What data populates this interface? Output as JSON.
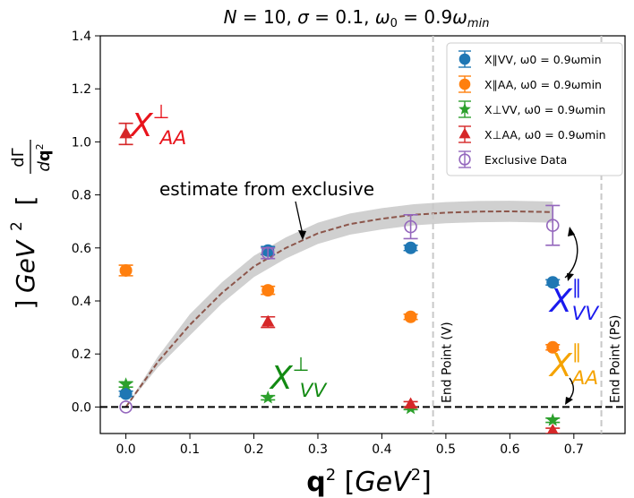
{
  "chart_data": {
    "type": "scatter",
    "title": "N = 10, σ = 0.1, ω₀ = 0.9ω_min",
    "xlabel": "q² [GeV²]",
    "ylabel": "dΓ/dq² [GeV²]",
    "xlim": [
      -0.04,
      0.78
    ],
    "ylim": [
      -0.1,
      1.4
    ],
    "xticks": [
      "0.0",
      "0.1",
      "0.2",
      "0.3",
      "0.4",
      "0.5",
      "0.6",
      "0.7"
    ],
    "yticks": [
      "0.0",
      "0.2",
      "0.4",
      "0.6",
      "0.8",
      "1.0",
      "1.2",
      "1.4"
    ],
    "grid": false,
    "legend_position": "top-right",
    "series": [
      {
        "key": "vv_par",
        "name": "X∥VV, ω0 = 0.9ωmin",
        "color": "#1f77b4",
        "marker": "circle",
        "x": [
          0.0,
          0.222,
          0.445,
          0.667
        ],
        "y": [
          0.05,
          0.59,
          0.6,
          0.47
        ],
        "err": [
          0.01,
          0.015,
          0.01,
          0.01
        ]
      },
      {
        "key": "aa_par",
        "name": "X∥AA, ω0 = 0.9ωmin",
        "color": "#ff7f0e",
        "marker": "circle",
        "x": [
          0.0,
          0.222,
          0.445,
          0.667
        ],
        "y": [
          0.515,
          0.44,
          0.34,
          0.225
        ],
        "err": [
          0.02,
          0.015,
          0.01,
          0.01
        ]
      },
      {
        "key": "vv_perp",
        "name": "X⊥VV, ω0 = 0.9ωmin",
        "color": "#2ca02c",
        "marker": "star",
        "x": [
          0.0,
          0.222,
          0.445,
          0.667
        ],
        "y": [
          0.085,
          0.035,
          -0.005,
          -0.05
        ],
        "err": [
          0.01,
          0.008,
          0.005,
          0.008
        ]
      },
      {
        "key": "aa_perp",
        "name": "X⊥AA, ω0 = 0.9ωmin",
        "color": "#d62728",
        "marker": "triangle",
        "x": [
          0.0,
          0.222,
          0.445,
          0.667
        ],
        "y": [
          1.03,
          0.32,
          0.01,
          -0.09
        ],
        "err": [
          0.04,
          0.02,
          0.01,
          0.01
        ]
      },
      {
        "key": "excl",
        "name": "Exclusive Data",
        "color": "#9467bd",
        "marker": "open-circle",
        "x": [
          0.0,
          0.222,
          0.445,
          0.667
        ],
        "y": [
          0.0,
          0.58,
          0.68,
          0.685
        ],
        "err": [
          0.0,
          0.02,
          0.045,
          0.075
        ]
      }
    ],
    "estimate_curve": {
      "x": [
        0.0,
        0.05,
        0.1,
        0.15,
        0.2,
        0.25,
        0.3,
        0.35,
        0.4,
        0.45,
        0.5,
        0.55,
        0.6,
        0.65,
        0.667
      ],
      "y": [
        0.0,
        0.17,
        0.31,
        0.43,
        0.53,
        0.6,
        0.655,
        0.69,
        0.71,
        0.725,
        0.733,
        0.737,
        0.738,
        0.736,
        0.735
      ],
      "band": 0.04,
      "color": "#8c564b"
    },
    "vlines": [
      {
        "x": 0.48,
        "label": "End Point (V)"
      },
      {
        "x": 0.743,
        "label": "End Point (PS)"
      }
    ],
    "hline": {
      "y": 0.0
    },
    "annotations": {
      "estimate": "estimate from exclusive",
      "xaa_perp": "X⊥AA",
      "xvv_perp": "X⊥VV",
      "xvv_par": "X∥VV",
      "xaa_par": "X∥AA"
    }
  }
}
